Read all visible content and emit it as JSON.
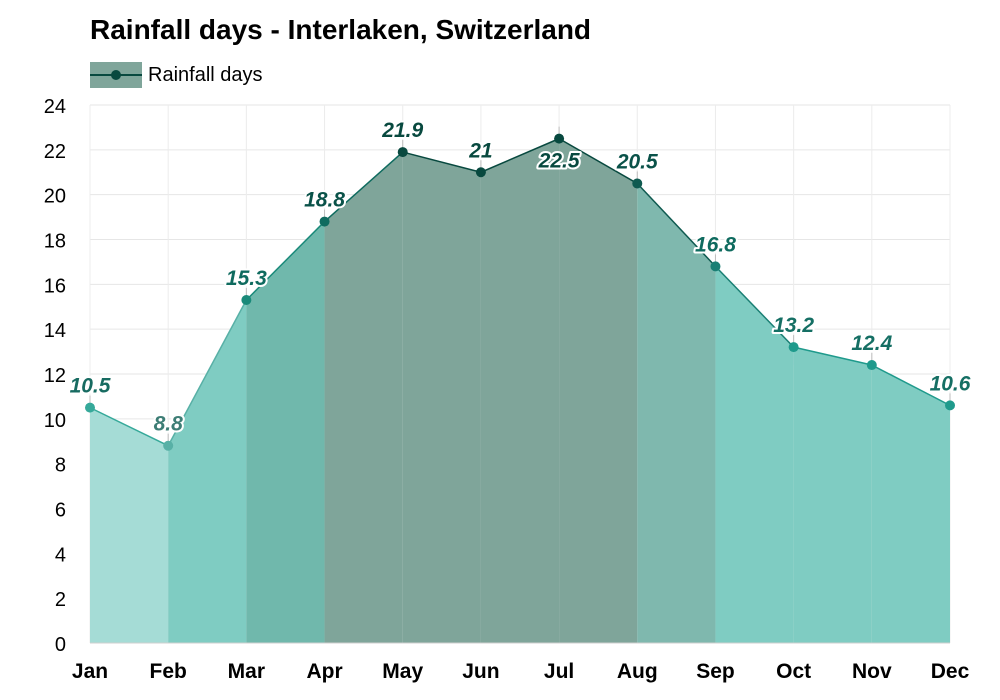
{
  "chart_data": {
    "type": "area",
    "title": "Rainfall days - Interlaken, Switzerland",
    "categories": [
      "Jan",
      "Feb",
      "Mar",
      "Apr",
      "May",
      "Jun",
      "Jul",
      "Aug",
      "Sep",
      "Oct",
      "Nov",
      "Dec"
    ],
    "series": [
      {
        "name": "Rainfall days",
        "values": [
          10.5,
          8.8,
          15.3,
          18.8,
          21.9,
          21,
          22.5,
          20.5,
          16.8,
          13.2,
          12.4,
          10.6
        ]
      }
    ],
    "data_labels": [
      "10.5",
      "8.8",
      "15.3",
      "18.8",
      "21.9",
      "21",
      "22.5",
      "20.5",
      "16.8",
      "13.2",
      "12.4",
      "10.6"
    ],
    "y_ticks": [
      0,
      2,
      4,
      6,
      8,
      10,
      12,
      14,
      16,
      18,
      20,
      22,
      24
    ],
    "ylim": [
      0,
      24
    ],
    "grid": true,
    "legend_position": "top-left",
    "colors": {
      "segment_fills": [
        "#a5dcd6",
        "#7fccc2",
        "#70b8ac",
        "#7fa59a",
        "#7fa59a",
        "#7fa59a",
        "#7fa59a",
        "#7fb8ae",
        "#7fccc2",
        "#7fccc2",
        "#7fccc2",
        "#96d5cc"
      ],
      "point_colors": [
        "#36a99a",
        "#58b0a6",
        "#1a8a7a",
        "#0f6b5f",
        "#08493f",
        "#08493f",
        "#08493f",
        "#0f5a50",
        "#1a7f74",
        "#1f9a8c",
        "#1f9a8c",
        "#1f9a8c"
      ],
      "label_colors": [
        "#176b61",
        "#3d7d75",
        "#0f6b5f",
        "#0a5249",
        "#08493f",
        "#08493f",
        "#08493f",
        "#0a5249",
        "#0f6b5f",
        "#156f64",
        "#156f64",
        "#156f64"
      ]
    }
  }
}
